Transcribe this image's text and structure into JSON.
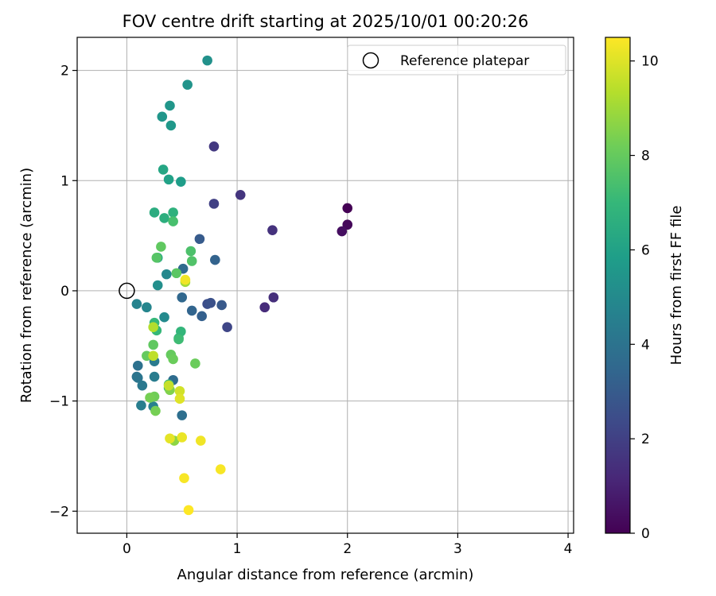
{
  "chart_data": {
    "type": "scatter",
    "title": "FOV centre drift starting at 2025/10/01 00:20:26",
    "xlabel": "Angular distance from reference (arcmin)",
    "ylabel": "Rotation from reference (arcmin)",
    "xlim": [
      -0.45,
      4.05
    ],
    "ylim": [
      -2.2,
      2.3
    ],
    "xticks": [
      0,
      1,
      2,
      3,
      4
    ],
    "xtick_labels": [
      "0",
      "1",
      "2",
      "3",
      "4"
    ],
    "yticks": [
      -2,
      -1,
      0,
      1,
      2
    ],
    "ytick_labels": [
      "−2",
      "−1",
      "0",
      "1",
      "2"
    ],
    "grid": true,
    "legend": {
      "position": "top-right",
      "label": "Reference platepar"
    },
    "reference_point": {
      "x": 0,
      "y": 0
    },
    "colorbar": {
      "label": "Hours from first FF file",
      "min": 0,
      "max": 10.5,
      "ticks": [
        0,
        2,
        4,
        6,
        8,
        10
      ],
      "tick_labels": [
        "0",
        "2",
        "4",
        "6",
        "8",
        "10"
      ],
      "colormap": "viridis"
    },
    "points": [
      {
        "x": 2.0,
        "y": 0.75,
        "hours": 0.0
      },
      {
        "x": 2.0,
        "y": 0.6,
        "hours": 0.2
      },
      {
        "x": 1.95,
        "y": 0.54,
        "hours": 0.4
      },
      {
        "x": 1.25,
        "y": -0.15,
        "hours": 1.3
      },
      {
        "x": 1.33,
        "y": -0.06,
        "hours": 1.4
      },
      {
        "x": 1.32,
        "y": 0.55,
        "hours": 1.5
      },
      {
        "x": 1.03,
        "y": 0.87,
        "hours": 1.6
      },
      {
        "x": 0.79,
        "y": 1.31,
        "hours": 1.7
      },
      {
        "x": 0.79,
        "y": 0.79,
        "hours": 2.0
      },
      {
        "x": 0.91,
        "y": -0.33,
        "hours": 2.2
      },
      {
        "x": 0.73,
        "y": -0.12,
        "hours": 2.5
      },
      {
        "x": 0.76,
        "y": -0.11,
        "hours": 2.6
      },
      {
        "x": 0.86,
        "y": -0.13,
        "hours": 2.9
      },
      {
        "x": 0.66,
        "y": 0.47,
        "hours": 3.0
      },
      {
        "x": 0.68,
        "y": -0.23,
        "hours": 3.2
      },
      {
        "x": 0.8,
        "y": 0.28,
        "hours": 3.3
      },
      {
        "x": 0.59,
        "y": -0.18,
        "hours": 3.4
      },
      {
        "x": 0.5,
        "y": -0.06,
        "hours": 3.5
      },
      {
        "x": 0.51,
        "y": 0.2,
        "hours": 3.6
      },
      {
        "x": 0.42,
        "y": -0.81,
        "hours": 3.7
      },
      {
        "x": 0.5,
        "y": -1.13,
        "hours": 3.8
      },
      {
        "x": 0.1,
        "y": -0.68,
        "hours": 3.9
      },
      {
        "x": 0.09,
        "y": -0.78,
        "hours": 4.0
      },
      {
        "x": 0.1,
        "y": -0.79,
        "hours": 4.1
      },
      {
        "x": 0.14,
        "y": -0.86,
        "hours": 4.2
      },
      {
        "x": 0.25,
        "y": -0.64,
        "hours": 4.3
      },
      {
        "x": 0.25,
        "y": -0.78,
        "hours": 4.4
      },
      {
        "x": 0.13,
        "y": -1.04,
        "hours": 4.5
      },
      {
        "x": 0.24,
        "y": -1.05,
        "hours": 4.6
      },
      {
        "x": 0.09,
        "y": -0.12,
        "hours": 4.7
      },
      {
        "x": 0.18,
        "y": -0.15,
        "hours": 4.8
      },
      {
        "x": 0.36,
        "y": 0.15,
        "hours": 4.9
      },
      {
        "x": 0.34,
        "y": -0.24,
        "hours": 5.0
      },
      {
        "x": 0.28,
        "y": 0.05,
        "hours": 5.2
      },
      {
        "x": 0.73,
        "y": 2.09,
        "hours": 5.3
      },
      {
        "x": 0.55,
        "y": 1.87,
        "hours": 5.4
      },
      {
        "x": 0.39,
        "y": 1.68,
        "hours": 5.5
      },
      {
        "x": 0.32,
        "y": 1.58,
        "hours": 5.5
      },
      {
        "x": 0.4,
        "y": 1.5,
        "hours": 5.6
      },
      {
        "x": 0.49,
        "y": 0.99,
        "hours": 5.8
      },
      {
        "x": 0.38,
        "y": 1.01,
        "hours": 6.0
      },
      {
        "x": 0.33,
        "y": 1.1,
        "hours": 6.2
      },
      {
        "x": 0.28,
        "y": 0.3,
        "hours": 6.3
      },
      {
        "x": 0.25,
        "y": 0.71,
        "hours": 6.5
      },
      {
        "x": 0.34,
        "y": 0.66,
        "hours": 6.6
      },
      {
        "x": 0.42,
        "y": 0.71,
        "hours": 6.7
      },
      {
        "x": 0.47,
        "y": -0.43,
        "hours": 6.8
      },
      {
        "x": 0.49,
        "y": -0.37,
        "hours": 6.9
      },
      {
        "x": 0.27,
        "y": -0.36,
        "hours": 7.0
      },
      {
        "x": 0.25,
        "y": -0.29,
        "hours": 7.0
      },
      {
        "x": 0.38,
        "y": -0.88,
        "hours": 7.1
      },
      {
        "x": 0.38,
        "y": -0.85,
        "hours": 7.2
      },
      {
        "x": 0.47,
        "y": -0.44,
        "hours": 7.2
      },
      {
        "x": 0.42,
        "y": 0.63,
        "hours": 7.4
      },
      {
        "x": 0.58,
        "y": 0.36,
        "hours": 7.5
      },
      {
        "x": 0.59,
        "y": 0.27,
        "hours": 7.6
      },
      {
        "x": 0.27,
        "y": 0.3,
        "hours": 7.7
      },
      {
        "x": 0.45,
        "y": 0.16,
        "hours": 7.8
      },
      {
        "x": 0.31,
        "y": 0.4,
        "hours": 7.9
      },
      {
        "x": 0.24,
        "y": -0.49,
        "hours": 7.9
      },
      {
        "x": 0.18,
        "y": -0.59,
        "hours": 8.0
      },
      {
        "x": 0.4,
        "y": -0.58,
        "hours": 8.0
      },
      {
        "x": 0.42,
        "y": -0.62,
        "hours": 8.1
      },
      {
        "x": 0.62,
        "y": -0.66,
        "hours": 8.1
      },
      {
        "x": 0.25,
        "y": -0.96,
        "hours": 8.2
      },
      {
        "x": 0.26,
        "y": -1.09,
        "hours": 8.3
      },
      {
        "x": 0.21,
        "y": -0.97,
        "hours": 8.3
      },
      {
        "x": 0.39,
        "y": -0.9,
        "hours": 8.5
      },
      {
        "x": 0.43,
        "y": -1.36,
        "hours": 8.7
      },
      {
        "x": 0.53,
        "y": 0.08,
        "hours": 9.0
      },
      {
        "x": 0.24,
        "y": -0.33,
        "hours": 9.3
      },
      {
        "x": 0.24,
        "y": -0.59,
        "hours": 9.5
      },
      {
        "x": 0.38,
        "y": -0.86,
        "hours": 9.6
      },
      {
        "x": 0.48,
        "y": -0.91,
        "hours": 9.8
      },
      {
        "x": 0.48,
        "y": -0.98,
        "hours": 10.0
      },
      {
        "x": 0.39,
        "y": -1.34,
        "hours": 10.1
      },
      {
        "x": 0.5,
        "y": -1.33,
        "hours": 10.2
      },
      {
        "x": 0.67,
        "y": -1.36,
        "hours": 10.3
      },
      {
        "x": 0.53,
        "y": 0.1,
        "hours": 10.3
      },
      {
        "x": 0.85,
        "y": -1.62,
        "hours": 10.4
      },
      {
        "x": 0.52,
        "y": -1.7,
        "hours": 10.4
      },
      {
        "x": 0.56,
        "y": -1.99,
        "hours": 10.5
      }
    ]
  }
}
